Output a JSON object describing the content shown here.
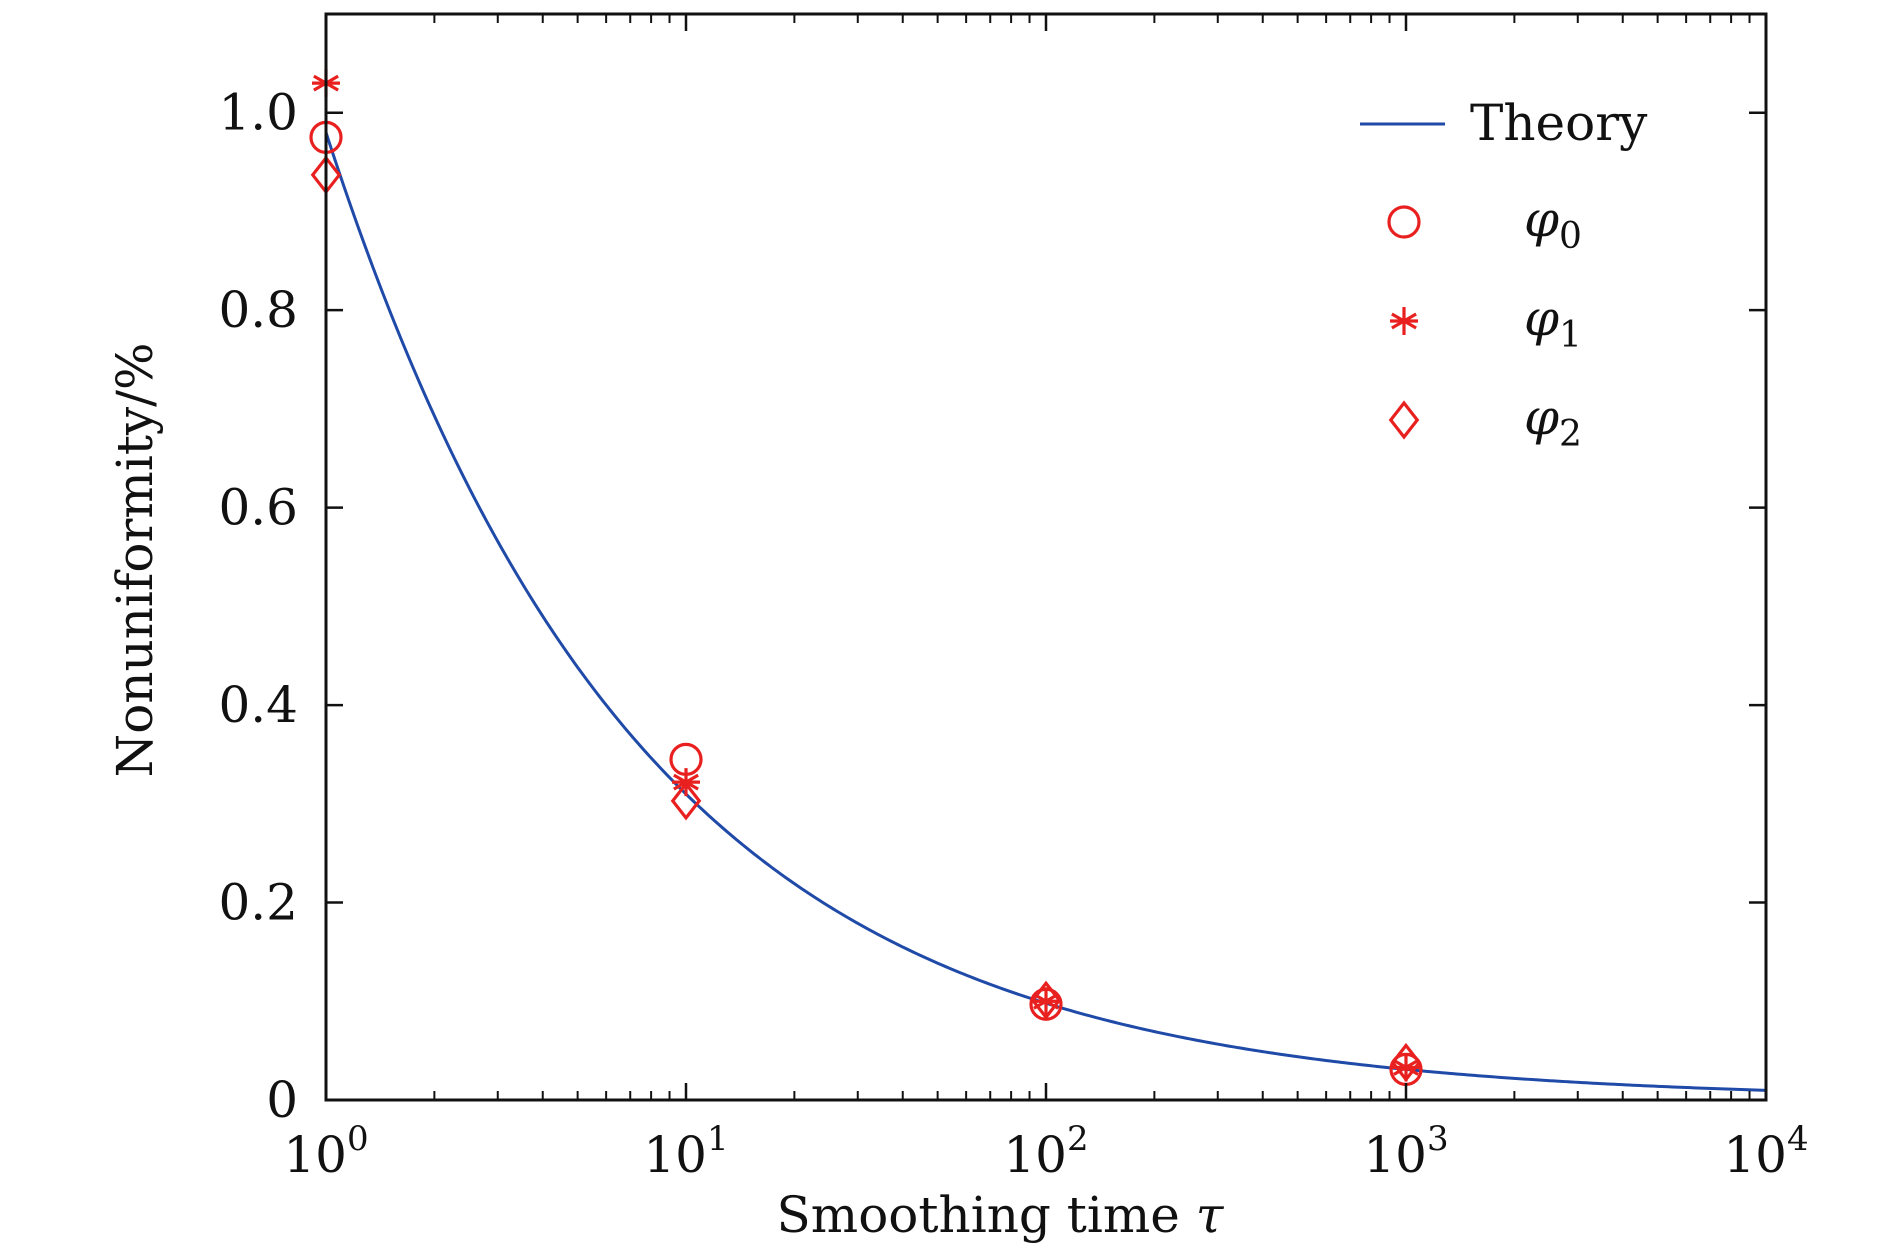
{
  "chart_data": {
    "type": "scatter",
    "title": "",
    "xlabel_text": "Smoothing time ",
    "xlabel_symbol": "τ",
    "ylabel": "Nonuniformity/%",
    "xscale": "log",
    "xlim": [
      1,
      10000
    ],
    "ylim": [
      0,
      1.1
    ],
    "grid": false,
    "legend_position": "top-right",
    "x_ticks": [
      {
        "value": 1,
        "base": "10",
        "exp": "0"
      },
      {
        "value": 10,
        "base": "10",
        "exp": "1"
      },
      {
        "value": 100,
        "base": "10",
        "exp": "2"
      },
      {
        "value": 1000,
        "base": "10",
        "exp": "3"
      },
      {
        "value": 10000,
        "base": "10",
        "exp": "4"
      }
    ],
    "y_ticks": [
      {
        "value": 0,
        "label": "0"
      },
      {
        "value": 0.2,
        "label": "0.2"
      },
      {
        "value": 0.4,
        "label": "0.4"
      },
      {
        "value": 0.6,
        "label": "0.6"
      },
      {
        "value": 0.8,
        "label": "0.8"
      },
      {
        "value": 1.0,
        "label": "1.0"
      }
    ],
    "theory": {
      "name": "Theory",
      "color": "#1f4aa8",
      "formula": "0.98 / sqrt(tau)"
    },
    "series": [
      {
        "name": "φ",
        "subscript": "0",
        "marker": "circle",
        "color": "#e8201f",
        "x": [
          1,
          10,
          100,
          1000
        ],
        "y": [
          0.975,
          0.345,
          0.097,
          0.031
        ]
      },
      {
        "name": "φ",
        "subscript": "1",
        "marker": "asterisk",
        "color": "#e8201f",
        "x": [
          1,
          10,
          100,
          1000
        ],
        "y": [
          1.03,
          0.322,
          0.1,
          0.033
        ]
      },
      {
        "name": "φ",
        "subscript": "2",
        "marker": "diamond",
        "color": "#e8201f",
        "x": [
          1,
          10,
          100,
          1000
        ],
        "y": [
          0.937,
          0.303,
          0.101,
          0.038
        ]
      }
    ]
  }
}
